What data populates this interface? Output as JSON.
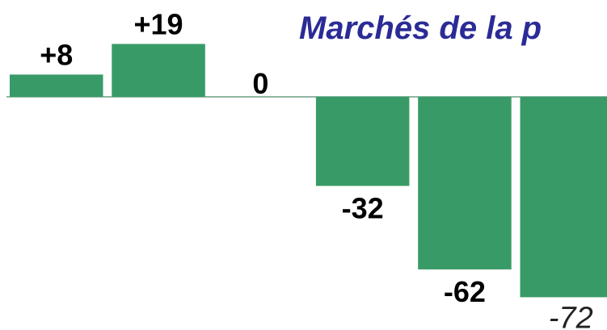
{
  "chart_data": {
    "type": "bar",
    "title": "Marchés de la p",
    "categories": [
      null,
      null,
      null,
      null,
      null,
      null
    ],
    "values": [
      8,
      19,
      0,
      -32,
      -62,
      -72
    ],
    "value_labels": [
      "+8",
      "+19",
      "0",
      "-32",
      "-62",
      "-72"
    ],
    "color": "#389b67"
  }
}
